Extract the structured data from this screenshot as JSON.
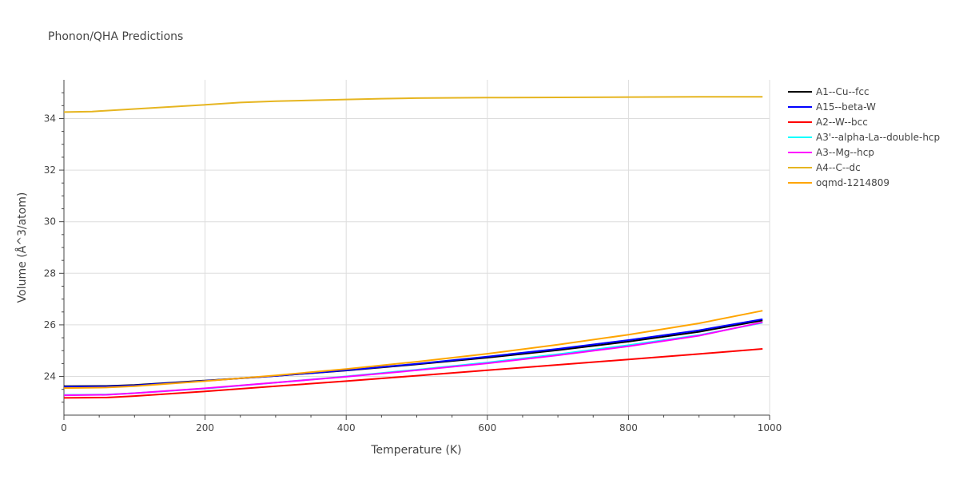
{
  "chart_data": {
    "type": "line",
    "title": "Phonon/QHA Predictions",
    "xlabel": "Temperature (K)",
    "ylabel": "Volume (Å^3/atom)",
    "xlim": [
      0,
      1000
    ],
    "ylim": [
      22.5,
      35.5
    ],
    "x_ticks": [
      0,
      200,
      400,
      600,
      800,
      1000
    ],
    "y_ticks": [
      24,
      26,
      28,
      30,
      32,
      34
    ],
    "grid": true,
    "legend_position": "top-right",
    "series": [
      {
        "name": "A1--Cu--fcc",
        "color": "#000000",
        "x": [
          0,
          60,
          100,
          200,
          300,
          400,
          500,
          600,
          700,
          800,
          900,
          990
        ],
        "y": [
          23.62,
          23.63,
          23.67,
          23.84,
          24.02,
          24.23,
          24.47,
          24.73,
          25.02,
          25.35,
          25.73,
          26.17
        ]
      },
      {
        "name": "A15--beta-W",
        "color": "#0000ff",
        "x": [
          0,
          60,
          100,
          200,
          300,
          400,
          500,
          600,
          700,
          800,
          900,
          990
        ],
        "y": [
          23.6,
          23.61,
          23.65,
          23.83,
          24.02,
          24.24,
          24.49,
          24.77,
          25.07,
          25.41,
          25.79,
          26.22
        ]
      },
      {
        "name": "A2--W--bcc",
        "color": "#ff0000",
        "x": [
          0,
          60,
          100,
          200,
          300,
          400,
          500,
          600,
          700,
          800,
          900,
          990
        ],
        "y": [
          23.17,
          23.18,
          23.24,
          23.42,
          23.62,
          23.82,
          24.03,
          24.24,
          24.45,
          24.66,
          24.87,
          25.07
        ]
      },
      {
        "name": "A3'--alpha-La--double-hcp",
        "color": "#00ffff",
        "x": [
          0,
          60,
          100,
          200,
          300,
          400,
          500,
          600,
          700,
          800,
          900,
          990
        ],
        "y": [
          23.28,
          23.3,
          23.35,
          23.53,
          23.76,
          24.0,
          24.26,
          24.54,
          24.86,
          25.21,
          25.6,
          26.08
        ]
      },
      {
        "name": "A3--Mg--hcp",
        "color": "#ff00ff",
        "x": [
          0,
          60,
          100,
          200,
          300,
          400,
          500,
          600,
          700,
          800,
          900,
          990
        ],
        "y": [
          23.27,
          23.29,
          23.35,
          23.54,
          23.76,
          23.99,
          24.24,
          24.51,
          24.82,
          25.17,
          25.58,
          26.1
        ]
      },
      {
        "name": "A4--C--dc",
        "color": "#e6b520",
        "x": [
          0,
          40,
          100,
          200,
          250,
          300,
          400,
          450,
          500,
          600,
          700,
          800,
          900,
          990
        ],
        "y": [
          34.25,
          34.27,
          34.37,
          34.53,
          34.62,
          34.67,
          34.74,
          34.77,
          34.79,
          34.81,
          34.82,
          34.83,
          34.84,
          34.84
        ]
      },
      {
        "name": "oqmd-1214809",
        "color": "#ffa500",
        "x": [
          0,
          60,
          100,
          200,
          300,
          400,
          500,
          600,
          700,
          800,
          900,
          990
        ],
        "y": [
          23.55,
          23.57,
          23.62,
          23.82,
          24.04,
          24.29,
          24.57,
          24.88,
          25.23,
          25.62,
          26.06,
          26.55
        ]
      }
    ]
  }
}
